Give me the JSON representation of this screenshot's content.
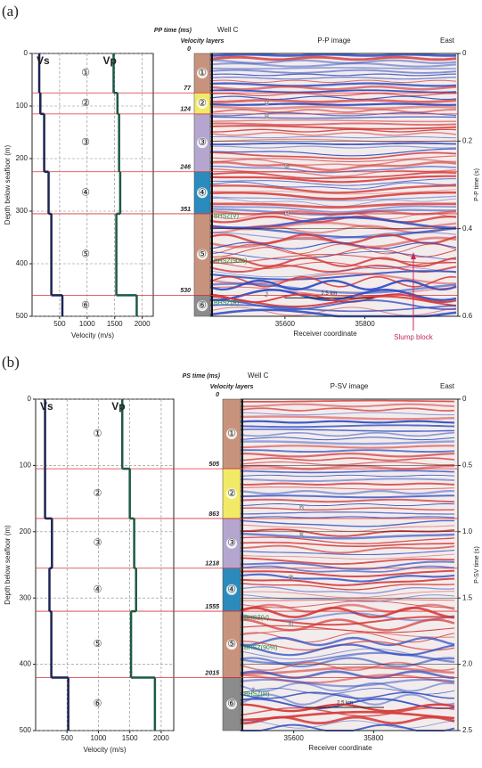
{
  "chart_data": [
    {
      "type": "line",
      "panel": "(a)",
      "xlabel": "Velocity (m/s)",
      "ylabel": "Depth below seafloor (m)",
      "xlim": [
        0,
        2200
      ],
      "xticks": [
        500,
        1000,
        1500,
        2000
      ],
      "ylim": [
        0,
        500
      ],
      "yticks": [
        0,
        100,
        200,
        300,
        400,
        500
      ],
      "y_inverted": true,
      "grid": true,
      "series": [
        {
          "name": "Vs",
          "color": "#1c2452",
          "values": [
            130,
            150,
            220,
            300,
            350,
            550
          ]
        },
        {
          "name": "Vp",
          "color": "#1d5a48",
          "values": [
            1480,
            1550,
            1580,
            1600,
            1530,
            1900
          ]
        }
      ],
      "layers": {
        "header": "Velocity layers",
        "time_header": "PP time (ms)",
        "labels": [
          "①",
          "②",
          "③",
          "④",
          "⑤",
          "⑥"
        ],
        "colors": [
          "#c8937c",
          "#f2ea66",
          "#b4a6cf",
          "#2b8bbd",
          "#c8937c",
          "#8c8c8c"
        ],
        "tops": [
          0,
          75,
          115,
          225,
          305,
          460
        ],
        "bottoms": [
          75,
          115,
          225,
          305,
          460,
          500
        ],
        "times": [
          0,
          77,
          124,
          246,
          351,
          530
        ]
      },
      "seismic": {
        "title": "P-P image",
        "well": "Well C",
        "east": "East",
        "xlabel": "Receiver coordinate",
        "xlim": [
          35413,
          36033
        ],
        "xticks": [
          35600,
          35800
        ],
        "ylabel": "P-P time (s)",
        "ylim": [
          0,
          0.6
        ],
        "yticks": [
          0,
          0.2,
          0.4,
          0.6
        ],
        "horizons": [
          "D",
          "E",
          "G",
          "H",
          "J"
        ],
        "bhsz": [
          "BHSZ(V)",
          "BHSZ(90%)",
          "BHSZ(R)"
        ],
        "scale_bar": "2.5 km",
        "annotation": "Slump block"
      }
    },
    {
      "type": "line",
      "panel": "(b)",
      "xlabel": "Velocity (m/s)",
      "ylabel": "Depth below seafloor (m)",
      "xlim": [
        0,
        2200
      ],
      "xticks": [
        500,
        1000,
        1500,
        2000
      ],
      "ylim": [
        0,
        500
      ],
      "yticks": [
        0,
        100,
        200,
        300,
        400,
        500
      ],
      "y_inverted": true,
      "grid": true,
      "series": [
        {
          "name": "Vs",
          "color": "#1c2452",
          "values": [
            150,
            150,
            260,
            220,
            250,
            520
          ]
        },
        {
          "name": "Vp",
          "color": "#1d5a48",
          "values": [
            1380,
            1500,
            1570,
            1600,
            1520,
            1900
          ]
        }
      ],
      "layers": {
        "header": "Velocity layers",
        "time_header": "PS time (ms)",
        "labels": [
          "①",
          "②",
          "③",
          "④",
          "⑤",
          "⑥"
        ],
        "colors": [
          "#c8937c",
          "#f2ea66",
          "#b4a6cf",
          "#2b8bbd",
          "#c8937c",
          "#8c8c8c"
        ],
        "tops": [
          0,
          105,
          180,
          255,
          320,
          420
        ],
        "bottoms": [
          105,
          180,
          255,
          320,
          420,
          500
        ],
        "times": [
          0,
          505,
          863,
          1218,
          1555,
          2015
        ]
      },
      "seismic": {
        "title": "P-SV image",
        "well": "Well C",
        "east": "East",
        "xlabel": "Receiver coordinate",
        "xlim": [
          35467,
          36011
        ],
        "xticks": [
          35600,
          35800
        ],
        "ylabel": "P-SV time (s)",
        "ylim": [
          0,
          2.5
        ],
        "yticks": [
          0,
          0.5,
          {
            "value": 1,
            "label": "1.0"
          },
          1.5,
          {
            "value": 2,
            "label": "2.0"
          },
          2.5
        ],
        "horizons": [
          "D",
          "E",
          "G",
          "H",
          "J"
        ],
        "bhsz": [
          "BHSZ(V)",
          "BHSZ(90%)",
          "BHSZ(R)"
        ],
        "scale_bar": "2.5 km"
      }
    }
  ]
}
